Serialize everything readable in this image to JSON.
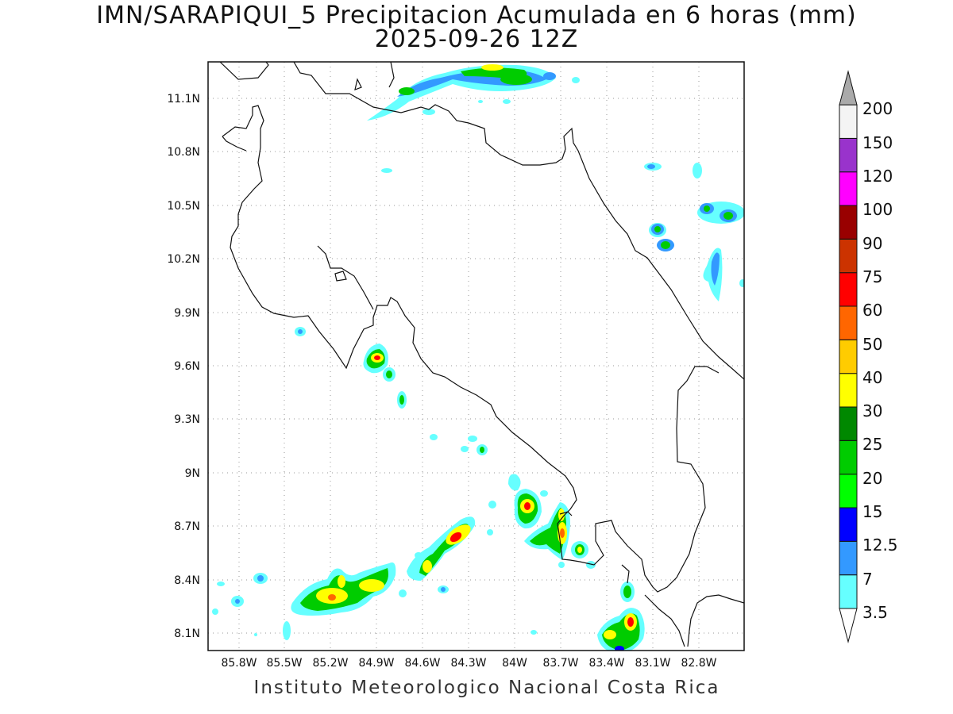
{
  "title": {
    "line1": "IMN/SARAPIQUI_5 Precipitacion Acumulada en 6 horas (mm)",
    "line2": "2025-09-26 12Z"
  },
  "credit": "Instituto Meteorologico Nacional Costa Rica",
  "axes": {
    "lon_labels": [
      "85.8W",
      "85.5W",
      "85.2W",
      "84.9W",
      "84.6W",
      "84.3W",
      "84W",
      "83.7W",
      "83.4W",
      "83.1W",
      "82.8W"
    ],
    "lat_labels": [
      "11.1N",
      "10.8N",
      "10.5N",
      "10.2N",
      "9.9N",
      "9.6N",
      "9.3N",
      "9N",
      "8.7N",
      "8.4N",
      "8.1N"
    ],
    "grid": true
  },
  "legend": {
    "levels": [
      "3.5",
      "7",
      "12.5",
      "15",
      "20",
      "25",
      "30",
      "40",
      "50",
      "60",
      "75",
      "90",
      "100",
      "120",
      "150",
      "200"
    ],
    "colors": [
      "#ffffff",
      "#66ffff",
      "#3399ff",
      "#0000ff",
      "#00ff00",
      "#00cc00",
      "#008800",
      "#ffff00",
      "#ffcc00",
      "#ff6600",
      "#ff0000",
      "#cc3300",
      "#990000",
      "#ff00ff",
      "#9933cc",
      "#f4f4f4",
      "#aaaaaa"
    ]
  }
}
